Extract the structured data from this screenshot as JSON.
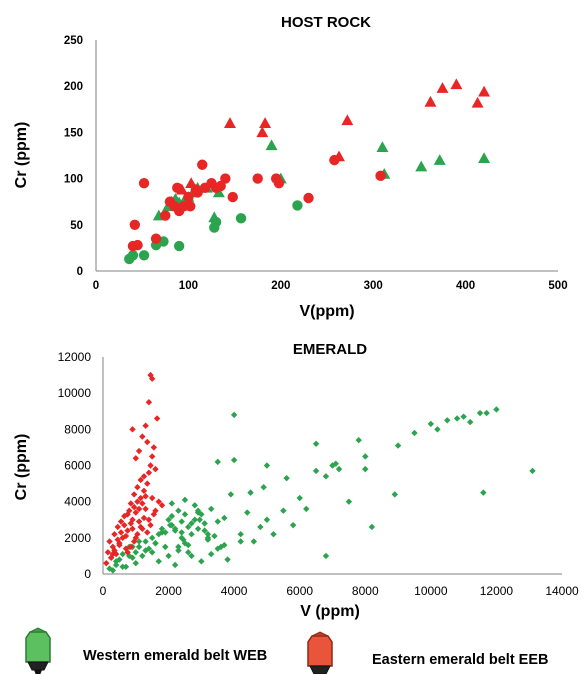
{
  "colors": {
    "western": "#2ca44f",
    "eastern": "#e82626",
    "axis": "#808080"
  },
  "chart_data": [
    {
      "type": "scatter",
      "title": "HOST ROCK",
      "xlabel": "V(ppm)",
      "ylabel": "Cr (ppm)",
      "xlim": [
        0,
        500
      ],
      "ylim": [
        0,
        250
      ],
      "xticks": [
        "0",
        "100",
        "200",
        "300",
        "400",
        "500"
      ],
      "yticks": [
        "0",
        "50",
        "100",
        "150",
        "200",
        "250"
      ],
      "grid": false,
      "series": [
        {
          "name": "Western emerald belt WEB",
          "marker": "circle",
          "color": "#2ca44f",
          "x": [
            36,
            40,
            52,
            65,
            73,
            90,
            128,
            130,
            157,
            218
          ],
          "y": [
            13,
            17,
            17,
            28,
            32,
            27,
            47,
            53,
            57,
            71
          ]
        },
        {
          "name": "Western emerald belt WEB",
          "marker": "triangle",
          "color": "#2ca44f",
          "x": [
            68,
            78,
            82,
            86,
            90,
            96,
            100,
            105,
            108,
            110,
            120,
            128,
            133,
            190,
            200,
            310,
            312,
            352,
            372,
            420
          ],
          "y": [
            60,
            70,
            75,
            78,
            74,
            77,
            80,
            85,
            88,
            90,
            90,
            58,
            85,
            136,
            100,
            134,
            105,
            113,
            120,
            122
          ]
        },
        {
          "name": "Eastern emerald belt EEB",
          "marker": "circle",
          "color": "#e82626",
          "x": [
            40,
            42,
            45,
            52,
            65,
            75,
            80,
            85,
            88,
            90,
            95,
            100,
            102,
            108,
            110,
            115,
            118,
            125,
            130,
            135,
            140,
            148,
            175,
            195,
            198,
            230,
            258,
            308
          ],
          "y": [
            27,
            50,
            28,
            95,
            35,
            60,
            75,
            70,
            90,
            65,
            70,
            80,
            70,
            88,
            85,
            115,
            90,
            95,
            90,
            92,
            100,
            80,
            100,
            100,
            95,
            79,
            120,
            103
          ],
          "note": ""
        },
        {
          "name": "Eastern emerald belt EEB",
          "marker": "triangle",
          "color": "#e82626",
          "x": [
            93,
            103,
            145,
            180,
            183,
            263,
            272,
            362,
            375,
            390,
            413,
            420
          ],
          "y": [
            88,
            95,
            160,
            150,
            160,
            124,
            163,
            183,
            198,
            202,
            182,
            194
          ]
        }
      ]
    },
    {
      "type": "scatter",
      "title": "EMERALD",
      "xlabel": "V (ppm)",
      "ylabel": "Cr (ppm)",
      "xlim": [
        0,
        14000
      ],
      "ylim": [
        0,
        12000
      ],
      "xticks": [
        "0",
        "2000",
        "4000",
        "6000",
        "8000",
        "10000",
        "12000",
        "14000"
      ],
      "yticks": [
        "0",
        "2000",
        "4000",
        "6000",
        "8000",
        "10000",
        "12000"
      ],
      "grid": false,
      "series": [
        {
          "name": "Western emerald belt WEB",
          "marker": "diamond",
          "color": "#2ca44f",
          "x": [
            200,
            300,
            400,
            500,
            600,
            700,
            800,
            900,
            1000,
            1100,
            1200,
            1300,
            1400,
            1500,
            1600,
            1700,
            1800,
            1900,
            2000,
            2100,
            2200,
            2300,
            2400,
            2500,
            2600,
            2700,
            2800,
            2900,
            3000,
            3100,
            3200,
            3300,
            3400,
            3500,
            3600,
            3700,
            3800,
            4000,
            4200,
            4400,
            4600,
            4800,
            5000,
            5200,
            5500,
            5800,
            6000,
            6200,
            6500,
            6800,
            7000,
            7200,
            7500,
            7800,
            8000,
            8200,
            9000,
            9500,
            10000,
            10200,
            10500,
            10800,
            11000,
            11200,
            11500,
            11700,
            12000,
            13100,
            2000,
            2200,
            2400,
            2600,
            2800,
            3000,
            3200,
            1800,
            2100,
            2300,
            2500,
            2700,
            2900,
            3100,
            3300,
            3500,
            1600,
            1900,
            2500,
            4000,
            3500,
            4500,
            5000,
            6500,
            7100,
            8000,
            8900,
            11600,
            6800,
            5600,
            4900,
            2300,
            2600,
            3900,
            2050,
            2450,
            2950,
            1500,
            1700,
            900,
            1100,
            1300,
            1000,
            800,
            600,
            400,
            2200,
            2700,
            3200,
            3700,
            4200,
            2100,
            2400,
            2900
          ],
          "y": [
            300,
            200,
            500,
            800,
            1100,
            400,
            1500,
            900,
            1200,
            1500,
            1000,
            1800,
            1400,
            2000,
            1700,
            2200,
            2500,
            1500,
            3000,
            2700,
            2400,
            3500,
            2900,
            1700,
            2600,
            2200,
            3800,
            2500,
            3300,
            2800,
            2000,
            3600,
            2100,
            2900,
            1500,
            3100,
            800,
            6300,
            2200,
            3400,
            1800,
            2600,
            3000,
            2200,
            3500,
            2700,
            4200,
            3600,
            7200,
            1000,
            6000,
            5800,
            4000,
            7400,
            5800,
            2600,
            7100,
            7800,
            8300,
            8000,
            8500,
            8600,
            8700,
            8400,
            8900,
            8900,
            9100,
            5700,
            1000,
            500,
            2000,
            1200,
            3000,
            700,
            1900,
            2300,
            3900,
            1300,
            4100,
            2800,
            3500,
            2400,
            1100,
            1400,
            1700,
            2300,
            3300,
            8800,
            6200,
            4500,
            6000,
            5700,
            6100,
            6500,
            4400,
            4500,
            5400,
            5300,
            4800,
            1500,
            1600,
            4400,
            2700,
            1900,
            3000,
            1200,
            700,
            1500,
            1800,
            1300,
            600,
            1000,
            400,
            700,
            2500,
            1000,
            2200,
            1600,
            1800,
            3200,
            2300,
            3400
          ]
        },
        {
          "name": "Eastern emerald belt EEB",
          "marker": "diamond",
          "color": "#e82626",
          "x": [
            100,
            150,
            200,
            250,
            300,
            350,
            400,
            450,
            500,
            550,
            600,
            650,
            700,
            750,
            800,
            850,
            900,
            950,
            1000,
            1050,
            1100,
            1150,
            1200,
            1250,
            1300,
            1350,
            1400,
            1450,
            1500,
            1550,
            1600,
            1650,
            1400,
            1300,
            1200,
            1100,
            1000,
            900,
            1500,
            1450,
            1350,
            1250,
            1150,
            1050,
            950,
            850,
            750,
            650,
            550,
            450,
            350,
            250,
            1000,
            1200,
            1400,
            1600,
            1700,
            1800,
            1500,
            1300,
            1100,
            900,
            700,
            500,
            300,
            1550,
            1450,
            1350,
            1250,
            1150,
            1050,
            950,
            850,
            750
          ],
          "y": [
            600,
            1200,
            1800,
            900,
            1500,
            2200,
            1100,
            2600,
            1700,
            2900,
            2000,
            3200,
            1400,
            2400,
            3500,
            2800,
            3000,
            3700,
            3400,
            4000,
            3600,
            4200,
            3900,
            4600,
            4300,
            5000,
            5600,
            6000,
            6500,
            7000,
            5800,
            8600,
            9500,
            8200,
            7600,
            6800,
            6400,
            8000,
            10800,
            11000,
            7300,
            5400,
            5200,
            4800,
            4400,
            3900,
            3300,
            2700,
            2300,
            1900,
            1300,
            900,
            2000,
            2500,
            3000,
            3500,
            4000,
            3800,
            4200,
            3600,
            2900,
            2500,
            2100,
            1600,
            1100,
            3300,
            2700,
            2300,
            3100,
            2600,
            2200,
            1800,
            1500,
            1200
          ]
        }
      ]
    }
  ],
  "legend": {
    "western_label": "Western emerald belt WEB",
    "eastern_label": "Eastern emerald belt EEB",
    "western_icon": "green-highlighter-icon",
    "eastern_icon": "red-highlighter-icon"
  }
}
